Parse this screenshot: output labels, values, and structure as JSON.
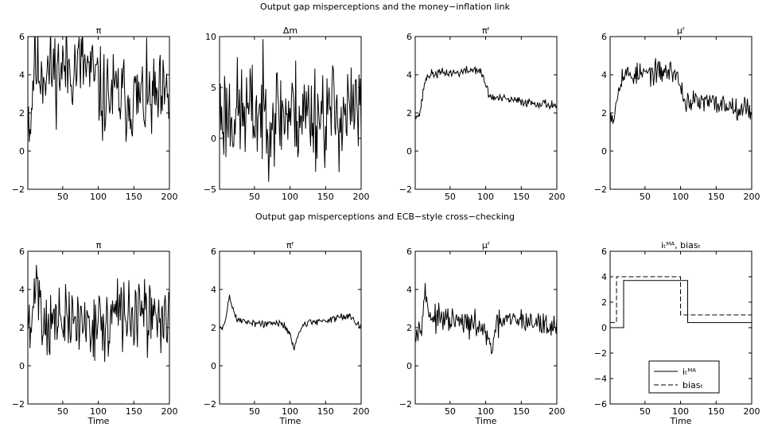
{
  "headings": {
    "top": "Output gap misperceptions and the money−inflation link",
    "bottom": "Output gap misperceptions and ECB−style cross−checking"
  },
  "chart_data": [
    {
      "type": "line",
      "title": "π",
      "xlabel": "",
      "xlim": [
        1,
        200
      ],
      "ylim": [
        -2,
        6
      ],
      "xticks": [
        50,
        100,
        150,
        200
      ],
      "yticks": [
        -2,
        0,
        2,
        4,
        6
      ],
      "series": [
        {
          "color": "#000000",
          "style": "solid",
          "seed": 11,
          "noise": 1.15,
          "points": [
            [
              1,
              2.2
            ],
            [
              5,
              1.5
            ],
            [
              10,
              5.0
            ],
            [
              14,
              4.2
            ],
            [
              20,
              4.3
            ],
            [
              30,
              4.2
            ],
            [
              60,
              4.4
            ],
            [
              80,
              4.5
            ],
            [
              90,
              4.0
            ],
            [
              100,
              3.5
            ],
            [
              105,
              2.6
            ],
            [
              110,
              3.0
            ],
            [
              150,
              2.7
            ],
            [
              200,
              2.6
            ]
          ]
        }
      ]
    },
    {
      "type": "line",
      "title": "Δm",
      "xlabel": "",
      "xlim": [
        1,
        200
      ],
      "ylim": [
        -5,
        10
      ],
      "xticks": [
        50,
        100,
        150,
        200
      ],
      "yticks": [
        -5,
        0,
        5,
        10
      ],
      "series": [
        {
          "color": "#000000",
          "style": "solid",
          "seed": 23,
          "noise": 2.6,
          "points": [
            [
              1,
              2.5
            ],
            [
              50,
              2.5
            ],
            [
              100,
              2.5
            ],
            [
              150,
              2.5
            ],
            [
              200,
              2.5
            ]
          ]
        }
      ]
    },
    {
      "type": "line",
      "title": "πᶠ",
      "xlabel": "",
      "xlim": [
        1,
        200
      ],
      "ylim": [
        -2,
        6
      ],
      "xticks": [
        50,
        100,
        150,
        200
      ],
      "yticks": [
        -2,
        0,
        2,
        4,
        6
      ],
      "series": [
        {
          "color": "#000000",
          "style": "solid",
          "seed": 37,
          "noise": 0.12,
          "points": [
            [
              1,
              2.0
            ],
            [
              6,
              1.8
            ],
            [
              10,
              2.5
            ],
            [
              14,
              3.6
            ],
            [
              20,
              4.0
            ],
            [
              40,
              4.1
            ],
            [
              60,
              4.1
            ],
            [
              88,
              4.3
            ],
            [
              95,
              4.0
            ],
            [
              100,
              3.5
            ],
            [
              105,
              2.9
            ],
            [
              110,
              2.8
            ],
            [
              150,
              2.6
            ],
            [
              200,
              2.4
            ]
          ]
        }
      ]
    },
    {
      "type": "line",
      "title": "μᶠ",
      "xlabel": "",
      "xlim": [
        1,
        200
      ],
      "ylim": [
        -2,
        6
      ],
      "xticks": [
        50,
        100,
        150,
        200
      ],
      "yticks": [
        -2,
        0,
        2,
        4,
        6
      ],
      "series": [
        {
          "color": "#000000",
          "style": "solid",
          "seed": 53,
          "noise": 0.3,
          "points": [
            [
              1,
              2.0
            ],
            [
              6,
              1.8
            ],
            [
              10,
              2.6
            ],
            [
              14,
              3.7
            ],
            [
              20,
              4.0
            ],
            [
              40,
              4.0
            ],
            [
              60,
              4.1
            ],
            [
              90,
              4.2
            ],
            [
              95,
              3.9
            ],
            [
              100,
              3.4
            ],
            [
              105,
              2.7
            ],
            [
              110,
              2.6
            ],
            [
              150,
              2.5
            ],
            [
              200,
              2.2
            ]
          ]
        }
      ]
    },
    {
      "type": "line",
      "title": "π",
      "xlabel": "Time",
      "xlim": [
        1,
        200
      ],
      "ylim": [
        -2,
        6
      ],
      "xticks": [
        50,
        100,
        150,
        200
      ],
      "yticks": [
        -2,
        0,
        2,
        4,
        6
      ],
      "series": [
        {
          "color": "#000000",
          "style": "solid",
          "seed": 71,
          "noise": 0.9,
          "points": [
            [
              1,
              2.0
            ],
            [
              6,
              1.6
            ],
            [
              9,
              3.0
            ],
            [
              12,
              5.1
            ],
            [
              16,
              4.2
            ],
            [
              20,
              2.5
            ],
            [
              25,
              2.3
            ],
            [
              100,
              2.3
            ],
            [
              110,
              1.8
            ],
            [
              120,
              2.7
            ],
            [
              200,
              2.5
            ]
          ]
        }
      ]
    },
    {
      "type": "line",
      "title": "πᶠ",
      "xlabel": "Time",
      "xlim": [
        1,
        200
      ],
      "ylim": [
        -2,
        6
      ],
      "xticks": [
        50,
        100,
        150,
        200
      ],
      "yticks": [
        -2,
        0,
        2,
        4,
        6
      ],
      "series": [
        {
          "color": "#000000",
          "style": "solid",
          "seed": 89,
          "noise": 0.1,
          "points": [
            [
              1,
              2.0
            ],
            [
              5,
              1.9
            ],
            [
              10,
              2.5
            ],
            [
              15,
              3.7
            ],
            [
              19,
              3.1
            ],
            [
              25,
              2.4
            ],
            [
              60,
              2.2
            ],
            [
              90,
              2.2
            ],
            [
              100,
              1.7
            ],
            [
              106,
              0.9
            ],
            [
              110,
              1.4
            ],
            [
              118,
              2.2
            ],
            [
              150,
              2.4
            ],
            [
              185,
              2.6
            ],
            [
              200,
              2.1
            ]
          ]
        }
      ]
    },
    {
      "type": "line",
      "title": "μᶠ",
      "xlabel": "Time",
      "xlim": [
        1,
        200
      ],
      "ylim": [
        -2,
        6
      ],
      "xticks": [
        50,
        100,
        150,
        200
      ],
      "yticks": [
        -2,
        0,
        2,
        4,
        6
      ],
      "series": [
        {
          "color": "#000000",
          "style": "solid",
          "seed": 97,
          "noise": 0.32,
          "points": [
            [
              1,
              2.0
            ],
            [
              5,
              1.8
            ],
            [
              10,
              2.5
            ],
            [
              15,
              3.8
            ],
            [
              19,
              3.0
            ],
            [
              25,
              2.5
            ],
            [
              60,
              2.3
            ],
            [
              95,
              2.0
            ],
            [
              103,
              1.3
            ],
            [
              108,
              0.8
            ],
            [
              112,
              1.6
            ],
            [
              120,
              2.3
            ],
            [
              150,
              2.4
            ],
            [
              200,
              2.0
            ]
          ]
        }
      ]
    },
    {
      "type": "line",
      "title": "iₜᴹᴬ, biasₜ",
      "xlabel": "Time",
      "xlim": [
        1,
        200
      ],
      "ylim": [
        -6,
        6
      ],
      "xticks": [
        50,
        100,
        150,
        200
      ],
      "yticks": [
        -6,
        -4,
        -2,
        0,
        2,
        4,
        6
      ],
      "legend": {
        "location": "lower-center",
        "entries": [
          {
            "label": "iₜᴹᴬ",
            "style": "solid"
          },
          {
            "label": "biasₜ",
            "style": "dashed"
          }
        ]
      },
      "series": [
        {
          "style": "solid",
          "color": "#000000",
          "points": [
            [
              1,
              0
            ],
            [
              20,
              0
            ],
            [
              20,
              3.7
            ],
            [
              110,
              3.7
            ],
            [
              110,
              0.4
            ],
            [
              200,
              0.4
            ]
          ]
        },
        {
          "style": "dashed",
          "color": "#000000",
          "points": [
            [
              1,
              0.4
            ],
            [
              10,
              0.4
            ],
            [
              10,
              4
            ],
            [
              100,
              4
            ],
            [
              100,
              1.0
            ],
            [
              200,
              1.0
            ]
          ]
        }
      ]
    }
  ]
}
